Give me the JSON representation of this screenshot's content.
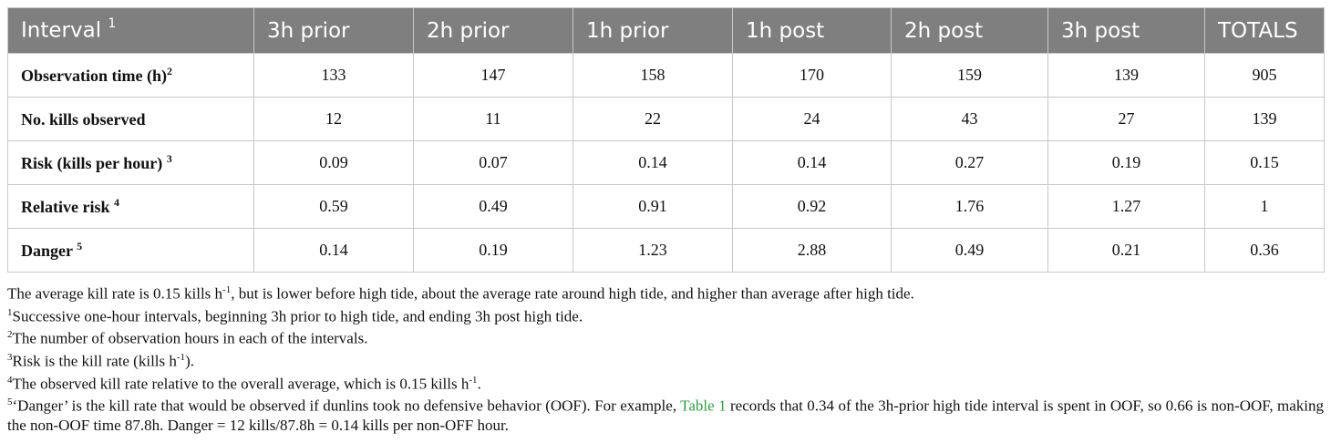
{
  "table": {
    "columns": [
      {
        "label": "Interval",
        "sup": "1"
      },
      {
        "label": "3h prior",
        "sup": ""
      },
      {
        "label": "2h prior",
        "sup": ""
      },
      {
        "label": "1h prior",
        "sup": ""
      },
      {
        "label": "1h post",
        "sup": ""
      },
      {
        "label": "2h post",
        "sup": ""
      },
      {
        "label": "3h post",
        "sup": ""
      },
      {
        "label": "TOTALS",
        "sup": ""
      }
    ],
    "rows": [
      {
        "label": "Observation time (h)",
        "sup": "2",
        "values": [
          "133",
          "147",
          "158",
          "170",
          "159",
          "139",
          "905"
        ]
      },
      {
        "label": "No. kills observed",
        "sup": "",
        "values": [
          "12",
          "11",
          "22",
          "24",
          "43",
          "27",
          "139"
        ]
      },
      {
        "label": "Risk (kills per hour) ",
        "sup": "3",
        "values": [
          "0.09",
          "0.07",
          "0.14",
          "0.14",
          "0.27",
          "0.19",
          "0.15"
        ]
      },
      {
        "label": "Relative risk ",
        "sup": "4",
        "values": [
          "0.59",
          "0.49",
          "0.91",
          "0.92",
          "1.76",
          "1.27",
          "1"
        ]
      },
      {
        "label": "Danger ",
        "sup": "5",
        "values": [
          "0.14",
          "0.19",
          "1.23",
          "2.88",
          "0.49",
          "0.21",
          "0.36"
        ]
      }
    ]
  },
  "notes": {
    "main_a": "The average kill rate is 0.15 kills h",
    "main_sup": "-1",
    "main_b": ", but is lower before high tide, about the average rate around high tide, and higher than average after high tide.",
    "n1_sup": "1",
    "n1": "Successive one-hour intervals, beginning 3h prior to high tide, and ending 3h post high tide.",
    "n2_sup": "2",
    "n2": "The number of observation hours in each of the intervals.",
    "n3_sup": "3",
    "n3_a": "Risk is the kill rate (kills h",
    "n3_sup2": "-1",
    "n3_b": ").",
    "n4_sup": "4",
    "n4_a": "The observed kill rate relative to the overall average, which is 0.15 kills h",
    "n4_sup2": "-1",
    "n4_b": ".",
    "n5_sup": "5",
    "n5_a": "‘Danger’ is the kill rate that would be observed if dunlins took no defensive behavior (OOF). For example, ",
    "n5_link": "Table 1",
    "n5_b": " records that 0.34 of the 3h-prior high tide interval is spent in OOF, so 0.66 is non-OOF, making the non-OOF time 87.8h. Danger = 12 kills/87.8h = 0.14 kills per non-OFF hour.",
    "link_color": "#2e9e43"
  }
}
